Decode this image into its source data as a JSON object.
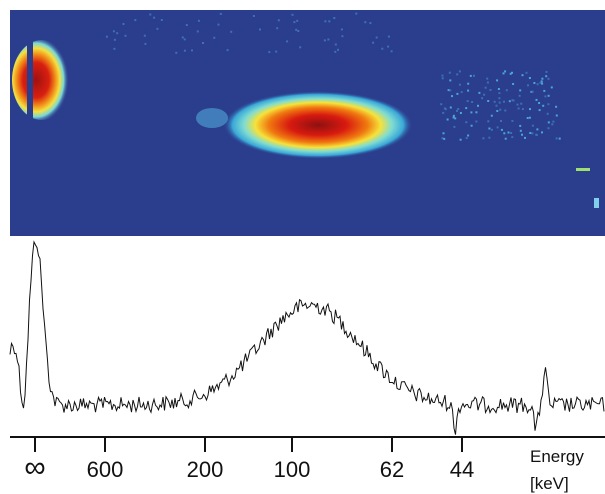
{
  "axis": {
    "ticks": [
      "∞",
      "600",
      "200",
      "100",
      "62",
      "44"
    ],
    "title": [
      "Energy",
      "[keV]"
    ]
  }
}
